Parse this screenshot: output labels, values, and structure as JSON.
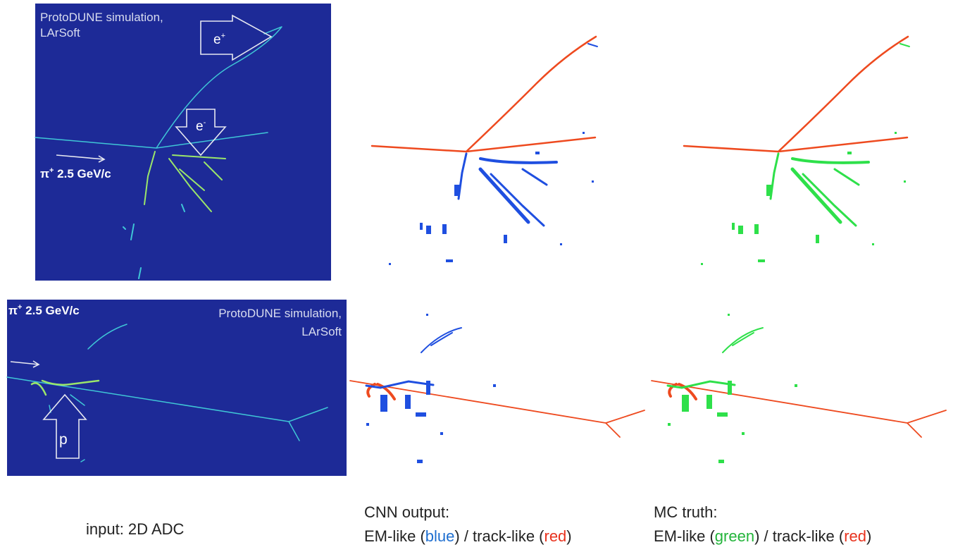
{
  "top_input": {
    "credit": [
      "ProtoDUNE simulation,",
      "LArSoft"
    ],
    "positron": {
      "base": "e",
      "sup": "+"
    },
    "electron": {
      "base": "e",
      "sup": "-"
    },
    "beam": {
      "base": "π",
      "sup": "+",
      "rest": " 2.5 GeV/c"
    }
  },
  "bottom_input": {
    "beam": {
      "base": "π",
      "sup": "+",
      "rest": " 2.5 GeV/c"
    },
    "credit": [
      "ProtoDUNE simulation,",
      "LArSoft"
    ],
    "proton": "p"
  },
  "captions": {
    "input": "input: 2D ADC",
    "cnn": {
      "title": "CNN output:",
      "parts": [
        "EM-like (",
        "blue",
        ") / track-like (",
        "red",
        ")"
      ]
    },
    "truth": {
      "title": "MC truth:",
      "parts": [
        "EM-like (",
        "green",
        ") / track-like (",
        "red",
        ")"
      ]
    }
  }
}
